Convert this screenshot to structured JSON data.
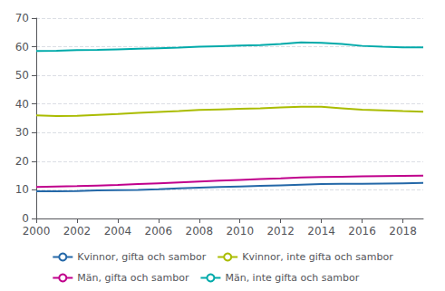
{
  "chart_data": {
    "type": "line",
    "x": [
      2000,
      2001,
      2002,
      2003,
      2004,
      2005,
      2006,
      2007,
      2008,
      2009,
      2010,
      2011,
      2012,
      2013,
      2014,
      2015,
      2016,
      2017,
      2018,
      2019
    ],
    "series": [
      {
        "name": "Kvinnor, gifta och sambor",
        "color": "#2468A8",
        "values": [
          9.5,
          9.5,
          9.6,
          9.8,
          9.9,
          10.0,
          10.2,
          10.5,
          10.8,
          11.0,
          11.2,
          11.4,
          11.6,
          11.8,
          12.0,
          12.1,
          12.1,
          12.2,
          12.3,
          12.4
        ]
      },
      {
        "name": "Kvinnor, inte gifta och sambor",
        "color": "#AABC00",
        "values": [
          36.0,
          35.8,
          35.9,
          36.2,
          36.5,
          36.9,
          37.2,
          37.5,
          37.9,
          38.1,
          38.3,
          38.5,
          38.8,
          39.0,
          39.0,
          38.5,
          38.0,
          37.8,
          37.5,
          37.3
        ]
      },
      {
        "name": "Män, gifta och sambor",
        "color": "#C0008C",
        "values": [
          11.0,
          11.2,
          11.3,
          11.5,
          11.7,
          12.0,
          12.3,
          12.6,
          12.9,
          13.2,
          13.5,
          13.8,
          14.0,
          14.3,
          14.5,
          14.6,
          14.7,
          14.8,
          14.9,
          15.0
        ]
      },
      {
        "name": "Män, inte gifta och sambor",
        "color": "#00AAAA",
        "values": [
          58.5,
          58.6,
          58.8,
          58.9,
          59.1,
          59.3,
          59.5,
          59.7,
          60.0,
          60.2,
          60.4,
          60.6,
          61.0,
          61.5,
          61.4,
          61.0,
          60.3,
          60.0,
          59.8,
          59.8
        ]
      }
    ],
    "xlim": [
      2000,
      2019
    ],
    "xticks": [
      2000,
      2002,
      2004,
      2006,
      2008,
      2010,
      2012,
      2014,
      2016,
      2018
    ],
    "ylim": [
      0,
      70
    ],
    "yticks": [
      0,
      10,
      20,
      30,
      40,
      50,
      60,
      70
    ],
    "grid": true,
    "legend": "bottom"
  }
}
